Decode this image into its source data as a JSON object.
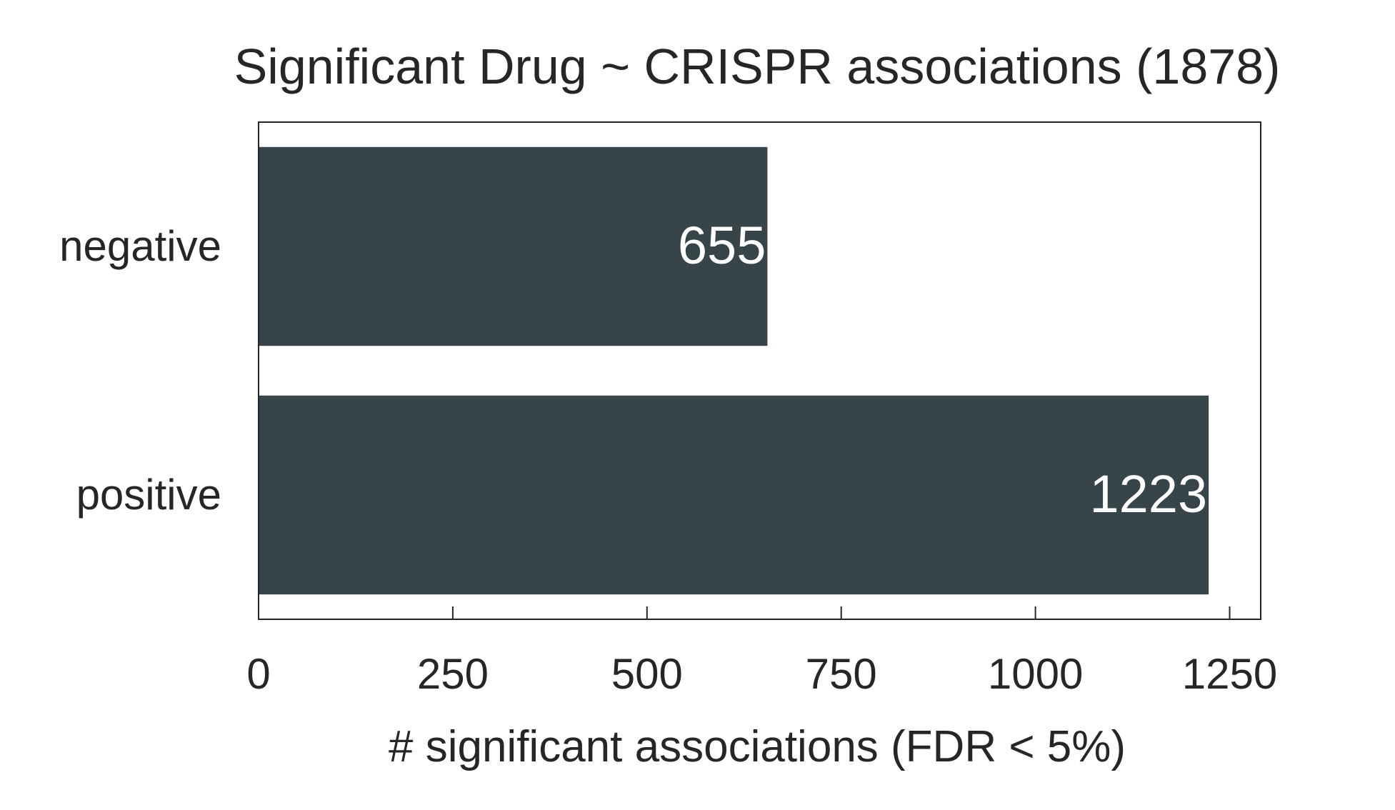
{
  "chart_data": {
    "type": "bar",
    "orientation": "horizontal",
    "title": "Significant Drug ~ CRISPR associations (1878)",
    "xlabel": "# significant associations (FDR < 5%)",
    "ylabel": "",
    "categories": [
      "negative",
      "positive"
    ],
    "values": [
      655,
      1223
    ],
    "value_labels": [
      "655",
      "1223"
    ],
    "xlim": [
      0,
      1290
    ],
    "xticks": [
      0,
      250,
      500,
      750,
      1000,
      1250
    ],
    "xtick_labels": [
      "0",
      "250",
      "500",
      "750",
      "1000",
      "1250"
    ],
    "grid": false,
    "legend": "none",
    "colors": {
      "bar": "#37454a",
      "value_label": "#ffffff",
      "text": "#262626",
      "axis": "#262626"
    }
  }
}
